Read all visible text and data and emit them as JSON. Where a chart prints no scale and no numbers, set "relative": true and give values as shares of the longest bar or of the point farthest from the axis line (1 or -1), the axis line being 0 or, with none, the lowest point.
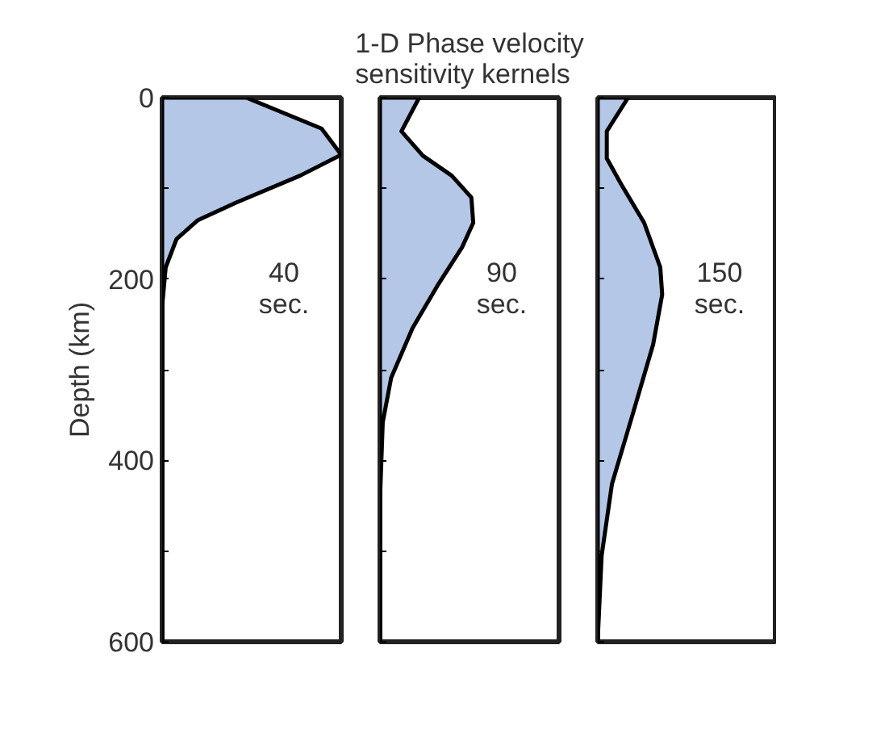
{
  "chart_data": [
    {
      "type": "area",
      "orientation": "horizontal",
      "relative": true,
      "ylabel": "Depth (km)",
      "annotations": [
        "40 sec."
      ],
      "tick_labels": "y",
      "grid": false,
      "x": [
        0,
        34,
        63,
        86,
        116,
        135,
        156,
        187,
        230,
        600
      ],
      "series": [
        {
          "color": "#b4c7e7",
          "values": [
            0.47,
            0.89,
            1.0,
            0.77,
            0.41,
            0.2,
            0.08,
            0.02,
            0,
            0
          ]
        }
      ],
      "ylim": [
        600,
        0
      ],
      "yticks": [
        0,
        {
          "value": 100,
          "label": null
        },
        200,
        {
          "value": 300,
          "label": null
        },
        400,
        {
          "value": 500,
          "label": null
        },
        600
      ]
    },
    {
      "type": "area",
      "orientation": "horizontal",
      "relative": true,
      "title": "1-D Phase velocity sensitivity kernels",
      "annotations": [
        "90 sec."
      ],
      "tick_labels": false,
      "grid": false,
      "x": [
        0,
        37,
        64,
        86,
        110,
        138,
        165,
        205,
        254,
        309,
        358,
        444,
        600
      ],
      "series": [
        {
          "color": "#b4c7e7",
          "values": [
            0.42,
            0.23,
            0.46,
            0.77,
            0.98,
            1.0,
            0.88,
            0.63,
            0.35,
            0.12,
            0.03,
            0,
            0
          ]
        }
      ],
      "ylim": [
        600,
        0
      ],
      "yticks": [
        0,
        {
          "value": 100,
          "label": null
        },
        200,
        {
          "value": 300,
          "label": null
        },
        400,
        {
          "value": 500,
          "label": null
        },
        600
      ]
    },
    {
      "type": "area",
      "orientation": "horizontal",
      "relative": true,
      "annotations": [
        "150 sec."
      ],
      "tick_labels": false,
      "grid": false,
      "x": [
        0,
        37,
        67,
        95,
        138,
        187,
        217,
        272,
        352,
        426,
        505,
        597
      ],
      "series": [
        {
          "color": "#b4c7e7",
          "values": [
            0.47,
            0.14,
            0.14,
            0.36,
            0.72,
            0.97,
            1.0,
            0.86,
            0.53,
            0.22,
            0.06,
            0
          ]
        }
      ],
      "ylim": [
        600,
        0
      ],
      "yticks": [
        0,
        {
          "value": 100,
          "label": null
        },
        200,
        {
          "value": 300,
          "label": null
        },
        400,
        {
          "value": 500,
          "label": null
        },
        600
      ]
    }
  ]
}
